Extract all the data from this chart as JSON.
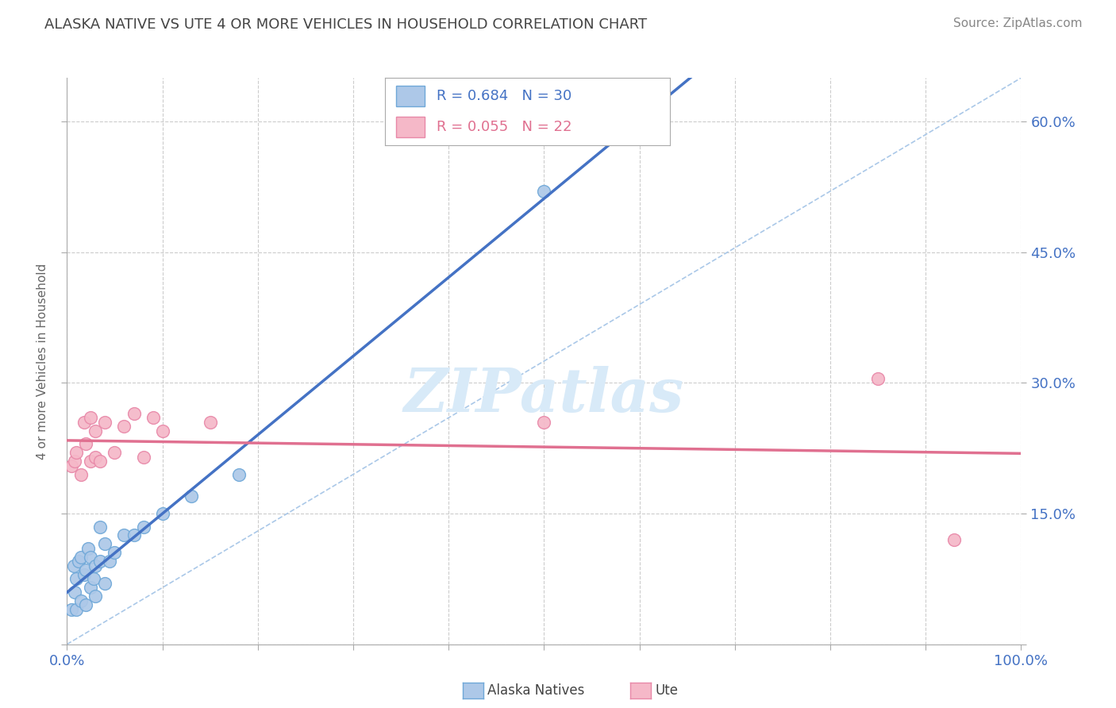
{
  "title": "ALASKA NATIVE VS UTE 4 OR MORE VEHICLES IN HOUSEHOLD CORRELATION CHART",
  "source": "Source: ZipAtlas.com",
  "ylabel": "4 or more Vehicles in Household",
  "alaska_color": "#adc8e8",
  "alaska_edge_color": "#6fa8d8",
  "ute_color": "#f5b8c8",
  "ute_edge_color": "#e888a8",
  "alaska_line_color": "#4472c4",
  "ute_line_color": "#e07090",
  "diagonal_color": "#aac8e8",
  "grid_color": "#cccccc",
  "background_color": "#ffffff",
  "alaska_label": "R = 0.684   N = 30",
  "ute_label": "R = 0.055   N = 22",
  "alaska_legend_label": "Alaska Natives",
  "ute_legend_label": "Ute",
  "watermark": "ZIPatlas",
  "watermark_color": "#d8eaf8",
  "xlim": [
    0.0,
    1.0
  ],
  "ylim": [
    0.0,
    0.65
  ],
  "ytick_positions": [
    0.0,
    0.15,
    0.3,
    0.45,
    0.6
  ],
  "ytick_labels": [
    "",
    "15.0%",
    "30.0%",
    "45.0%",
    "60.0%"
  ],
  "xtick_positions": [
    0.0,
    0.1,
    0.2,
    0.3,
    0.4,
    0.5,
    0.6,
    0.7,
    0.8,
    0.9,
    1.0
  ],
  "xtick_labels": [
    "0.0%",
    "",
    "",
    "",
    "",
    "",
    "",
    "",
    "",
    "",
    "100.0%"
  ],
  "alaska_x": [
    0.005,
    0.007,
    0.008,
    0.01,
    0.01,
    0.012,
    0.015,
    0.015,
    0.018,
    0.02,
    0.02,
    0.022,
    0.025,
    0.025,
    0.028,
    0.03,
    0.03,
    0.035,
    0.035,
    0.04,
    0.04,
    0.045,
    0.05,
    0.06,
    0.07,
    0.08,
    0.1,
    0.13,
    0.18,
    0.5
  ],
  "alaska_y": [
    0.04,
    0.09,
    0.06,
    0.04,
    0.075,
    0.095,
    0.05,
    0.1,
    0.08,
    0.045,
    0.085,
    0.11,
    0.065,
    0.1,
    0.075,
    0.055,
    0.09,
    0.095,
    0.135,
    0.07,
    0.115,
    0.095,
    0.105,
    0.125,
    0.125,
    0.135,
    0.15,
    0.17,
    0.195,
    0.52
  ],
  "ute_x": [
    0.005,
    0.008,
    0.01,
    0.015,
    0.018,
    0.02,
    0.025,
    0.025,
    0.03,
    0.03,
    0.035,
    0.04,
    0.05,
    0.06,
    0.07,
    0.08,
    0.09,
    0.1,
    0.15,
    0.5,
    0.85,
    0.93
  ],
  "ute_y": [
    0.205,
    0.21,
    0.22,
    0.195,
    0.255,
    0.23,
    0.21,
    0.26,
    0.215,
    0.245,
    0.21,
    0.255,
    0.22,
    0.25,
    0.265,
    0.215,
    0.26,
    0.245,
    0.255,
    0.255,
    0.305,
    0.12
  ],
  "title_fontsize": 13,
  "source_fontsize": 11,
  "tick_fontsize": 13,
  "legend_fontsize": 13,
  "ylabel_fontsize": 11,
  "watermark_fontsize": 55,
  "tick_color": "#4472c4",
  "title_color": "#444444",
  "source_color": "#888888",
  "ylabel_color": "#666666"
}
